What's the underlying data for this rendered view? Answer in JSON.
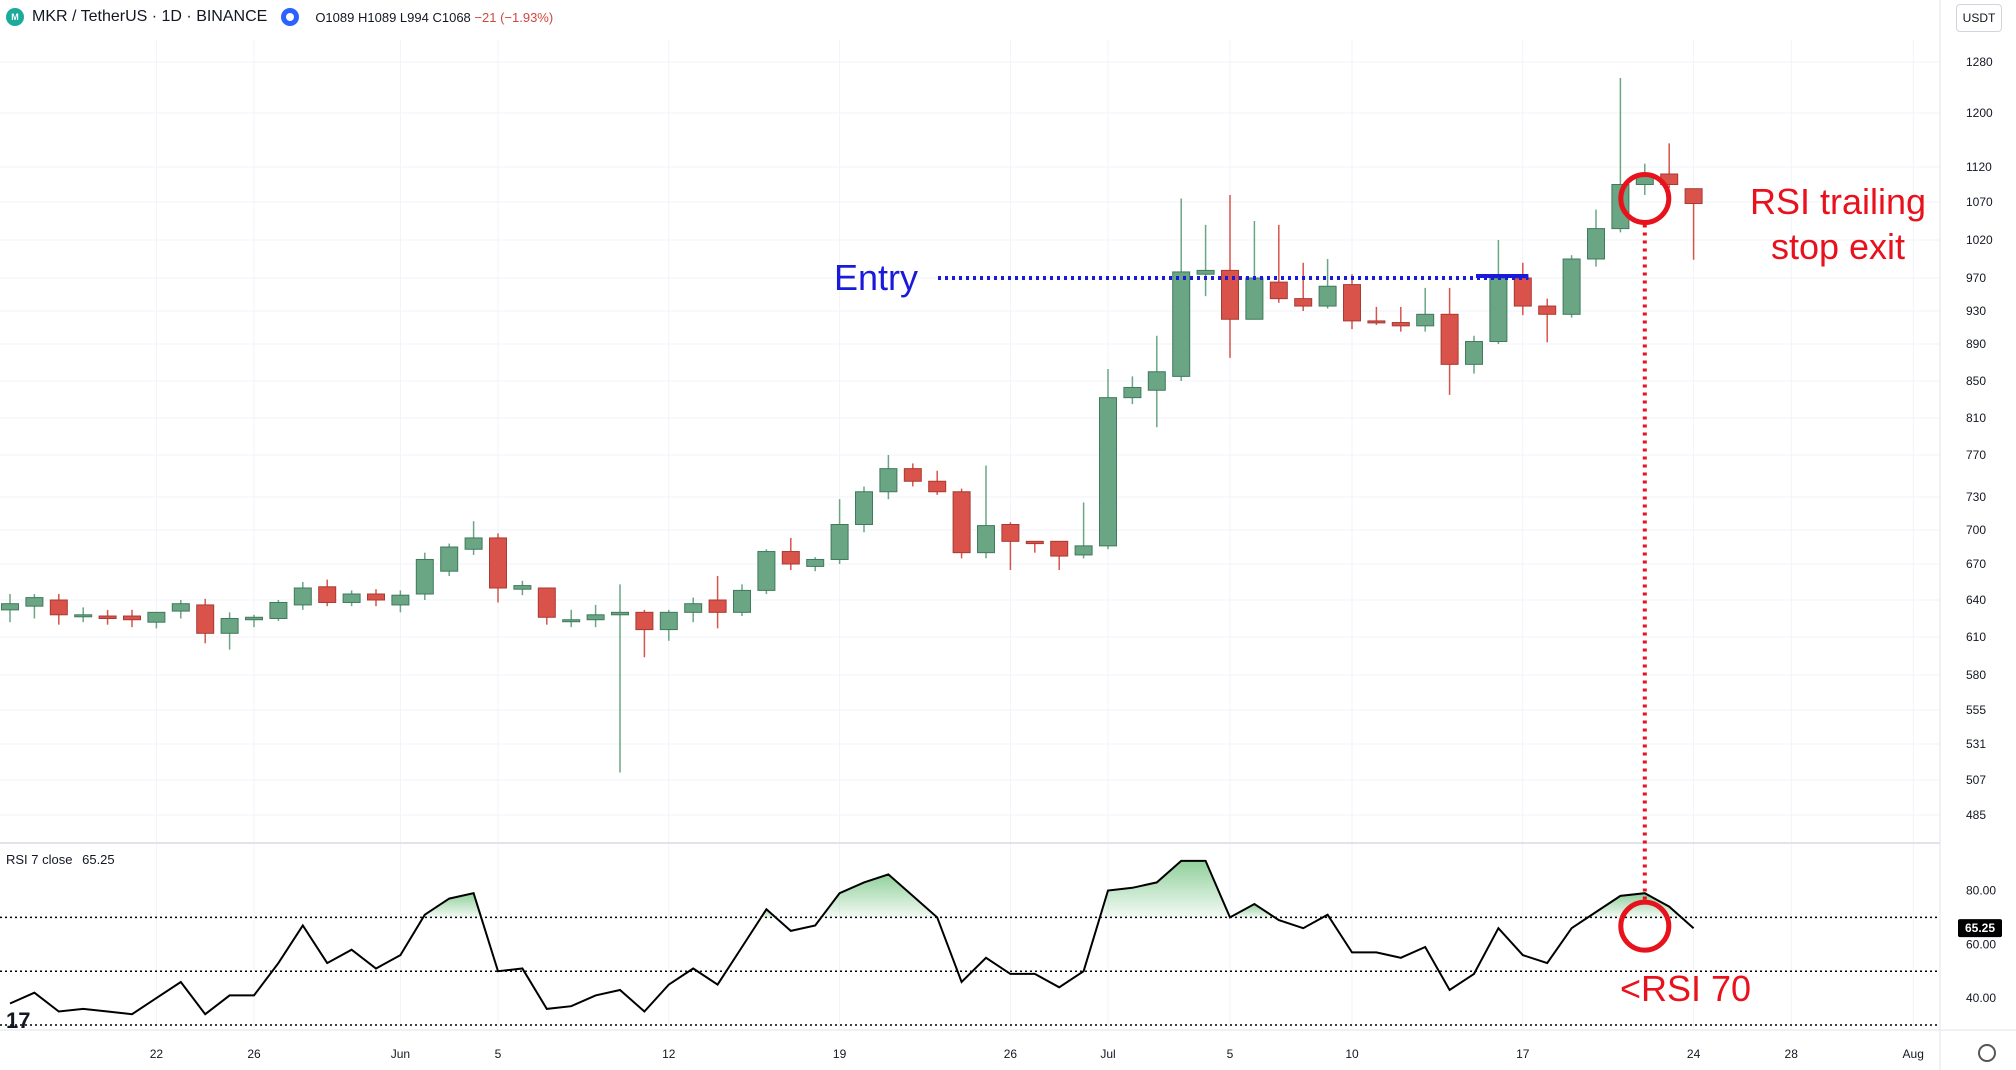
{
  "header": {
    "title": "MKR / TetherUS · 1D · BINANCE",
    "ohlc_o": "O1089",
    "ohlc_h": "H1089",
    "ohlc_l": "L994",
    "ohlc_c": "C1068",
    "ohlc_change": "−21 (−1.93%)"
  },
  "currency_label": "USDT",
  "rsi_legend": {
    "label": "RSI 7 close",
    "value": "65.25"
  },
  "annotations": {
    "entry": "Entry",
    "exit_line1": "RSI trailing",
    "exit_line2": "stop exit",
    "rsi_below": "<RSI 70"
  },
  "colors": {
    "up": "#6aa584",
    "down": "#d9534a",
    "entry": "#1a1adb",
    "annotation": "#e8121d",
    "rsi_line": "#000000",
    "rsi_fill": "#6cc07a"
  },
  "chart_data": [
    {
      "type": "candlestick",
      "title": "MKR / TetherUS · 1D · BINANCE",
      "y_ticks": [
        1280,
        1200,
        1120,
        1070,
        1020,
        970,
        930,
        890,
        850,
        810,
        770,
        730,
        700,
        670,
        640,
        610,
        580,
        555,
        531,
        507,
        485
      ],
      "x_tick_labels": [
        "22",
        "26",
        "Jun",
        "5",
        "12",
        "19",
        "26",
        "Jul",
        "5",
        "10",
        "17",
        "24",
        "28",
        "Aug"
      ],
      "entry_level": 970,
      "exit_marker_index": 67,
      "candles": [
        {
          "date": "May 16",
          "o": 632,
          "h": 645,
          "l": 622,
          "c": 637
        },
        {
          "date": "May 17",
          "o": 635,
          "h": 645,
          "l": 625,
          "c": 642
        },
        {
          "date": "May 18",
          "o": 640,
          "h": 645,
          "l": 620,
          "c": 628
        },
        {
          "date": "May 19",
          "o": 627,
          "h": 634,
          "l": 622,
          "c": 628
        },
        {
          "date": "May 20",
          "o": 627,
          "h": 632,
          "l": 620,
          "c": 625
        },
        {
          "date": "May 21",
          "o": 627,
          "h": 632,
          "l": 618,
          "c": 624
        },
        {
          "date": "May 22",
          "o": 622,
          "h": 630,
          "l": 617,
          "c": 630
        },
        {
          "date": "May 23",
          "o": 631,
          "h": 640,
          "l": 625,
          "c": 637
        },
        {
          "date": "May 24",
          "o": 636,
          "h": 641,
          "l": 605,
          "c": 613
        },
        {
          "date": "May 25",
          "o": 613,
          "h": 630,
          "l": 600,
          "c": 625
        },
        {
          "date": "May 26",
          "o": 624,
          "h": 628,
          "l": 618,
          "c": 626
        },
        {
          "date": "May 27",
          "o": 625,
          "h": 640,
          "l": 623,
          "c": 638
        },
        {
          "date": "May 28",
          "o": 636,
          "h": 655,
          "l": 632,
          "c": 650
        },
        {
          "date": "May 29",
          "o": 651,
          "h": 657,
          "l": 635,
          "c": 638
        },
        {
          "date": "May 30",
          "o": 638,
          "h": 648,
          "l": 635,
          "c": 645
        },
        {
          "date": "May 31",
          "o": 645,
          "h": 649,
          "l": 635,
          "c": 640
        },
        {
          "date": "Jun 1",
          "o": 636,
          "h": 648,
          "l": 630,
          "c": 644
        },
        {
          "date": "Jun 2",
          "o": 645,
          "h": 680,
          "l": 640,
          "c": 674
        },
        {
          "date": "Jun 3",
          "o": 664,
          "h": 688,
          "l": 660,
          "c": 685
        },
        {
          "date": "Jun 4",
          "o": 683,
          "h": 708,
          "l": 678,
          "c": 693
        },
        {
          "date": "Jun 5",
          "o": 693,
          "h": 697,
          "l": 638,
          "c": 650
        },
        {
          "date": "Jun 6",
          "o": 649,
          "h": 656,
          "l": 644,
          "c": 652
        },
        {
          "date": "Jun 7",
          "o": 650,
          "h": 650,
          "l": 620,
          "c": 626
        },
        {
          "date": "Jun 8",
          "o": 624,
          "h": 632,
          "l": 618,
          "c": 624
        },
        {
          "date": "Jun 9",
          "o": 624,
          "h": 636,
          "l": 618,
          "c": 628
        },
        {
          "date": "Jun 10",
          "o": 628,
          "h": 653,
          "l": 512,
          "c": 630
        },
        {
          "date": "Jun 11",
          "o": 630,
          "h": 632,
          "l": 594,
          "c": 616
        },
        {
          "date": "Jun 12",
          "o": 616,
          "h": 632,
          "l": 607,
          "c": 630
        },
        {
          "date": "Jun 13",
          "o": 630,
          "h": 642,
          "l": 622,
          "c": 637
        },
        {
          "date": "Jun 14",
          "o": 640,
          "h": 660,
          "l": 617,
          "c": 630
        },
        {
          "date": "Jun 15",
          "o": 630,
          "h": 653,
          "l": 627,
          "c": 648
        },
        {
          "date": "Jun 16",
          "o": 648,
          "h": 683,
          "l": 645,
          "c": 681
        },
        {
          "date": "Jun 17",
          "o": 681,
          "h": 693,
          "l": 665,
          "c": 670
        },
        {
          "date": "Jun 18",
          "o": 668,
          "h": 676,
          "l": 664,
          "c": 674
        },
        {
          "date": "Jun 19",
          "o": 674,
          "h": 728,
          "l": 670,
          "c": 705
        },
        {
          "date": "Jun 20",
          "o": 705,
          "h": 740,
          "l": 698,
          "c": 735
        },
        {
          "date": "Jun 21",
          "o": 735,
          "h": 770,
          "l": 728,
          "c": 757
        },
        {
          "date": "Jun 22",
          "o": 757,
          "h": 762,
          "l": 740,
          "c": 745
        },
        {
          "date": "Jun 23",
          "o": 745,
          "h": 755,
          "l": 732,
          "c": 735
        },
        {
          "date": "Jun 24",
          "o": 735,
          "h": 738,
          "l": 675,
          "c": 680
        },
        {
          "date": "Jun 25",
          "o": 680,
          "h": 760,
          "l": 675,
          "c": 704
        },
        {
          "date": "Jun 26",
          "o": 705,
          "h": 707,
          "l": 665,
          "c": 690
        },
        {
          "date": "Jun 27",
          "o": 690,
          "h": 690,
          "l": 680,
          "c": 688
        },
        {
          "date": "Jun 28",
          "o": 690,
          "h": 690,
          "l": 665,
          "c": 677
        },
        {
          "date": "Jun 29",
          "o": 678,
          "h": 725,
          "l": 675,
          "c": 686
        },
        {
          "date": "Jun 30",
          "o": 686,
          "h": 863,
          "l": 683,
          "c": 832
        },
        {
          "date": "Jul 1",
          "o": 832,
          "h": 855,
          "l": 825,
          "c": 843
        },
        {
          "date": "Jul 2",
          "o": 840,
          "h": 900,
          "l": 800,
          "c": 860
        },
        {
          "date": "Jul 3",
          "o": 855,
          "h": 1075,
          "l": 850,
          "c": 978
        },
        {
          "date": "Jul 4",
          "o": 975,
          "h": 1040,
          "l": 948,
          "c": 980
        },
        {
          "date": "Jul 5",
          "o": 980,
          "h": 1080,
          "l": 875,
          "c": 920
        },
        {
          "date": "Jul 6",
          "o": 920,
          "h": 1045,
          "l": 920,
          "c": 970
        },
        {
          "date": "Jul 7",
          "o": 965,
          "h": 1040,
          "l": 940,
          "c": 945
        },
        {
          "date": "Jul 8",
          "o": 945,
          "h": 990,
          "l": 930,
          "c": 936
        },
        {
          "date": "Jul 9",
          "o": 936,
          "h": 995,
          "l": 933,
          "c": 960
        },
        {
          "date": "Jul 10",
          "o": 962,
          "h": 975,
          "l": 908,
          "c": 918
        },
        {
          "date": "Jul 11",
          "o": 918,
          "h": 935,
          "l": 913,
          "c": 916
        },
        {
          "date": "Jul 12",
          "o": 916,
          "h": 935,
          "l": 905,
          "c": 912
        },
        {
          "date": "Jul 13",
          "o": 912,
          "h": 958,
          "l": 905,
          "c": 926
        },
        {
          "date": "Jul 14",
          "o": 926,
          "h": 958,
          "l": 835,
          "c": 868
        },
        {
          "date": "Jul 15",
          "o": 868,
          "h": 900,
          "l": 858,
          "c": 893
        },
        {
          "date": "Jul 16",
          "o": 893,
          "h": 1020,
          "l": 890,
          "c": 970
        },
        {
          "date": "Jul 17",
          "o": 970,
          "h": 990,
          "l": 925,
          "c": 936
        },
        {
          "date": "Jul 18",
          "o": 936,
          "h": 945,
          "l": 892,
          "c": 926
        },
        {
          "date": "Jul 19",
          "o": 926,
          "h": 1000,
          "l": 922,
          "c": 995
        },
        {
          "date": "Jul 20",
          "o": 995,
          "h": 1060,
          "l": 985,
          "c": 1035
        },
        {
          "date": "Jul 21",
          "o": 1035,
          "h": 1255,
          "l": 1030,
          "c": 1095
        },
        {
          "date": "Jul 22",
          "o": 1095,
          "h": 1125,
          "l": 1080,
          "c": 1110
        },
        {
          "date": "Jul 23",
          "o": 1110,
          "h": 1155,
          "l": 1090,
          "c": 1095
        },
        {
          "date": "Jul 24",
          "o": 1089,
          "h": 1089,
          "l": 994,
          "c": 1068
        }
      ]
    },
    {
      "type": "line",
      "title": "RSI 7 close",
      "y_ticks": [
        80,
        60,
        40
      ],
      "levels": [
        70,
        50,
        30
      ],
      "last_value_label": "65.25",
      "values": [
        38,
        42,
        35,
        36,
        35,
        34,
        40,
        46,
        34,
        41,
        41,
        53,
        67,
        53,
        58,
        51,
        56,
        71,
        77,
        79,
        50,
        51,
        36,
        37,
        41,
        43,
        35,
        45,
        51,
        45,
        59,
        73,
        65,
        67,
        79,
        83,
        86,
        78,
        70,
        46,
        55,
        49,
        49,
        44,
        50,
        80,
        81,
        83,
        91,
        91,
        70,
        75,
        69,
        66,
        71,
        57,
        57,
        55,
        59,
        43,
        49,
        66,
        56,
        53,
        66,
        72,
        78,
        79,
        74,
        66
      ]
    }
  ]
}
